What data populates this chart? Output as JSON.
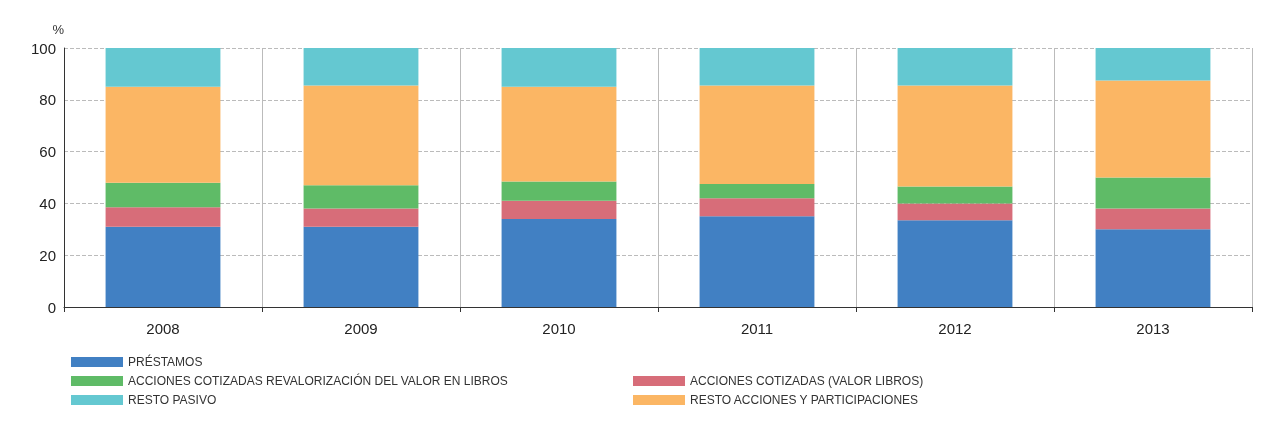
{
  "chart_data": {
    "type": "bar",
    "stacked": true,
    "ylabel": "%",
    "categories": [
      "2008",
      "2009",
      "2010",
      "2011",
      "2012",
      "2013"
    ],
    "series": [
      {
        "name": "PRÉSTAMOS",
        "color": "#4180c3",
        "values": [
          31,
          31,
          34,
          35,
          33.5,
          30
        ]
      },
      {
        "name": "ACCIONES COTIZADAS (VALOR LIBROS)",
        "color": "#d76d79",
        "values": [
          7.5,
          7,
          7,
          7,
          6.5,
          8
        ]
      },
      {
        "name": "ACCIONES COTIZADAS REVALORIZACIÓN DEL VALOR EN LIBROS",
        "color": "#5fbb67",
        "values": [
          9.5,
          9,
          7.5,
          5.5,
          6.5,
          12
        ]
      },
      {
        "name": "RESTO ACCIONES Y PARTICIPACIONES",
        "color": "#fbb664",
        "values": [
          37,
          38.5,
          36.5,
          38,
          39,
          37.5
        ]
      },
      {
        "name": "RESTO PASIVO",
        "color": "#64c8d1",
        "values": [
          15,
          14.5,
          15,
          14.5,
          14.5,
          12.5
        ]
      }
    ],
    "ylim": [
      0,
      100
    ],
    "yticks": [
      0,
      20,
      40,
      60,
      80,
      100
    ],
    "grid": true,
    "legend": "bottom"
  }
}
